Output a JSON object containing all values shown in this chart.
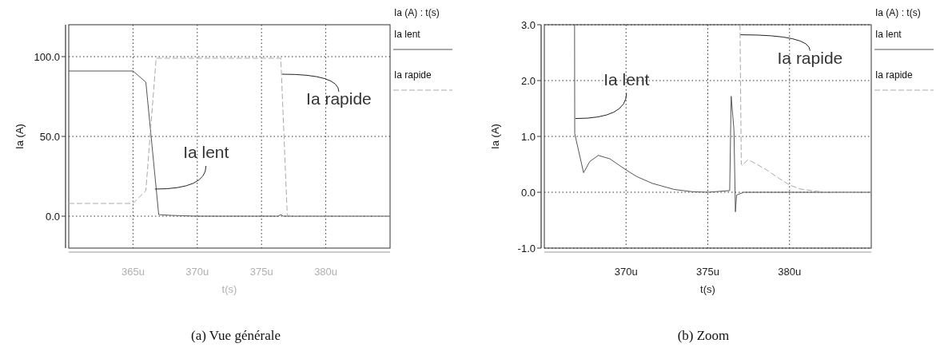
{
  "chart_data": [
    {
      "type": "line",
      "title": "(a) Vue générale",
      "xlabel": "t(s)",
      "ylabel": "Ia (A)",
      "legend_title": "Ia (A) : t(s)",
      "xlim": [
        360,
        385
      ],
      "ylim": [
        -20,
        120
      ],
      "xticks": [
        {
          "value": 365,
          "label": "365u"
        },
        {
          "value": 370,
          "label": "370u"
        },
        {
          "value": 375,
          "label": "375u"
        },
        {
          "value": 380,
          "label": "380u"
        }
      ],
      "yticks": [
        {
          "value": 0,
          "label": "0.0"
        },
        {
          "value": 50,
          "label": "50.0"
        },
        {
          "value": 100,
          "label": "100.0"
        }
      ],
      "grid": true,
      "legend": "top right",
      "marker": "none",
      "series": [
        {
          "name": "Ia lent",
          "color": "#555555",
          "line_style": "solid",
          "x": [
            360,
            365,
            366,
            367,
            368,
            370,
            376.3,
            376.5,
            376.7,
            377,
            385
          ],
          "values": [
            91,
            91,
            84,
            1,
            0.5,
            0,
            0,
            1,
            0,
            0,
            0
          ]
        },
        {
          "name": "Ia rapide",
          "color": "#aaaaaa",
          "line_style": "dashed",
          "x": [
            360,
            365,
            366,
            366.8,
            370,
            376.5,
            377,
            378,
            385
          ],
          "values": [
            8,
            8,
            16,
            99,
            99,
            99,
            0.5,
            0,
            0
          ]
        }
      ],
      "annotations": [
        {
          "text": "Ia lent",
          "x": 366.7,
          "y": 17
        },
        {
          "text": "Ia rapide",
          "x": 376.6,
          "y": 89
        }
      ]
    },
    {
      "type": "line",
      "title": "(b) Zoom",
      "xlabel": "t(s)",
      "ylabel": "Ia (A)",
      "legend_title": "Ia (A) : t(s)",
      "xlim": [
        365,
        385
      ],
      "ylim": [
        -1,
        3
      ],
      "xticks": [
        {
          "value": 370,
          "label": "370u"
        },
        {
          "value": 375,
          "label": "375u"
        },
        {
          "value": 380,
          "label": "380u"
        }
      ],
      "yticks": [
        {
          "value": -1,
          "label": "-1.0"
        },
        {
          "value": 0,
          "label": "0.0"
        },
        {
          "value": 1,
          "label": "1.0"
        },
        {
          "value": 2,
          "label": "2.0"
        },
        {
          "value": 3,
          "label": "3.0"
        }
      ],
      "grid": true,
      "legend": "top right",
      "marker": "none",
      "series": [
        {
          "name": "Ia lent",
          "color": "#555555",
          "line_style": "solid",
          "x": [
            366.85,
            366.86,
            367.4,
            367.78,
            368.3,
            369,
            370,
            370.66,
            371.6,
            372.95,
            374.05,
            375,
            376.34,
            376.43,
            376.6,
            376.69,
            376.76,
            377.2,
            385
          ],
          "values": [
            3,
            1.05,
            0.35,
            0.55,
            0.66,
            0.6,
            0.4,
            0.28,
            0.16,
            0.05,
            0.01,
            0,
            0.03,
            1.72,
            1.12,
            -0.35,
            -0.05,
            0,
            0
          ]
        },
        {
          "name": "Ia rapide",
          "color": "#aaaaaa",
          "line_style": "dashed",
          "x": [
            376.97,
            377.05,
            377.12,
            377.43,
            377.7,
            378.6,
            379.35,
            380,
            380.64,
            381.56,
            382.3,
            385
          ],
          "values": [
            3,
            0.5,
            0.48,
            0.58,
            0.55,
            0.4,
            0.25,
            0.13,
            0.06,
            0.02,
            0,
            0
          ]
        }
      ],
      "annotations": [
        {
          "text": "Ia lent",
          "x": 366.9,
          "y": 1.32
        },
        {
          "text": "Ia rapide",
          "x": 377.0,
          "y": 2.82
        }
      ]
    }
  ]
}
